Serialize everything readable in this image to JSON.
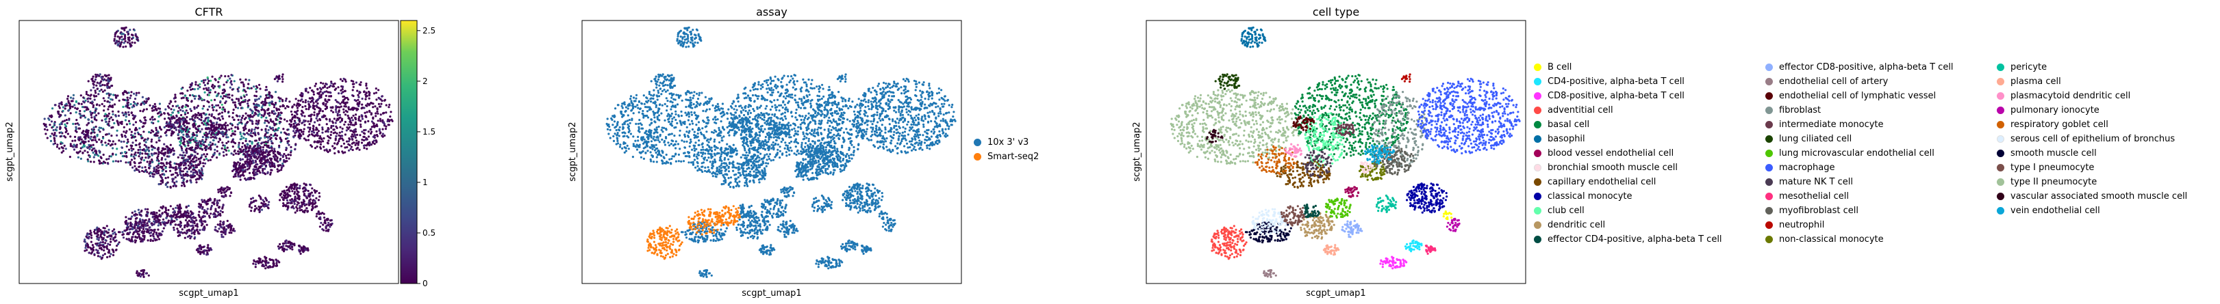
{
  "chart_data": [
    {
      "type": "scatter",
      "title": "CFTR",
      "xlabel": "scgpt_umap1",
      "ylabel": "scgpt_umap2",
      "colorbar": {
        "colormap": "viridis",
        "range": [
          0,
          2.6
        ],
        "ticks": [
          0,
          0.5,
          1,
          1.5,
          2,
          2.5
        ],
        "tick_labels": [
          "0",
          "0.5",
          "1",
          "1.5",
          "2",
          "2.5"
        ]
      },
      "background_color": "#440154"
    },
    {
      "type": "scatter",
      "title": "assay",
      "xlabel": "scgpt_umap1",
      "ylabel": "scgpt_umap2",
      "legend_placement": "right",
      "categories": [
        {
          "label": "10x 3' v3",
          "color": "#1f77b4"
        },
        {
          "label": "Smart-seq2",
          "color": "#ff7f0e"
        }
      ]
    },
    {
      "type": "scatter",
      "title": "cell type",
      "xlabel": "scgpt_umap1",
      "ylabel": "scgpt_umap2",
      "legend_placement": "right",
      "categories": [
        {
          "label": "B cell",
          "color": "#ffff00"
        },
        {
          "label": "CD4-positive, alpha-beta T cell",
          "color": "#1ce6ff"
        },
        {
          "label": "CD8-positive, alpha-beta T cell",
          "color": "#ff34ff"
        },
        {
          "label": "adventitial cell",
          "color": "#ff4a46"
        },
        {
          "label": "basal cell",
          "color": "#008941"
        },
        {
          "label": "basophil",
          "color": "#006fa6"
        },
        {
          "label": "blood vessel endothelial cell",
          "color": "#a30059"
        },
        {
          "label": "bronchial smooth muscle cell",
          "color": "#ffdbe5"
        },
        {
          "label": "capillary endothelial cell",
          "color": "#7a4900"
        },
        {
          "label": "classical monocyte",
          "color": "#0000a6"
        },
        {
          "label": "club cell",
          "color": "#63ffac"
        },
        {
          "label": "dendritic cell",
          "color": "#b79762"
        },
        {
          "label": "effector CD4-positive, alpha-beta T cell",
          "color": "#004d43"
        },
        {
          "label": "effector CD8-positive, alpha-beta T cell",
          "color": "#8fb0ff"
        },
        {
          "label": "endothelial cell of artery",
          "color": "#997d87"
        },
        {
          "label": "endothelial cell of lymphatic vessel",
          "color": "#5a0007"
        },
        {
          "label": "fibroblast",
          "color": "#809693"
        },
        {
          "label": "intermediate monocyte",
          "color": "#6a3a4c"
        },
        {
          "label": "lung ciliated cell",
          "color": "#1b4400"
        },
        {
          "label": "lung microvascular endothelial cell",
          "color": "#4fc601"
        },
        {
          "label": "macrophage",
          "color": "#3b5dff"
        },
        {
          "label": "mature NK T cell",
          "color": "#4a3b53"
        },
        {
          "label": "mesothelial cell",
          "color": "#ff2f80"
        },
        {
          "label": "myofibroblast cell",
          "color": "#61615a"
        },
        {
          "label": "neutrophil",
          "color": "#ba0900"
        },
        {
          "label": "non-classical monocyte",
          "color": "#6b7900"
        },
        {
          "label": "pericyte",
          "color": "#00c2a0"
        },
        {
          "label": "plasma cell",
          "color": "#ffaa92"
        },
        {
          "label": "plasmacytoid dendritic cell",
          "color": "#ff90c9"
        },
        {
          "label": "pulmonary ionocyte",
          "color": "#b903aa"
        },
        {
          "label": "respiratory goblet cell",
          "color": "#d16100"
        },
        {
          "label": "serous cell of epithelium of bronchus",
          "color": "#ddefff"
        },
        {
          "label": "smooth muscle cell",
          "color": "#000035"
        },
        {
          "label": "type I pneumocyte",
          "color": "#7b4f4b"
        },
        {
          "label": "type II pneumocyte",
          "color": "#a1c299"
        },
        {
          "label": "vascular associated smooth muscle cell",
          "color": "#300018"
        },
        {
          "label": "vein endothelial cell",
          "color": "#0aa6d8"
        }
      ]
    }
  ]
}
